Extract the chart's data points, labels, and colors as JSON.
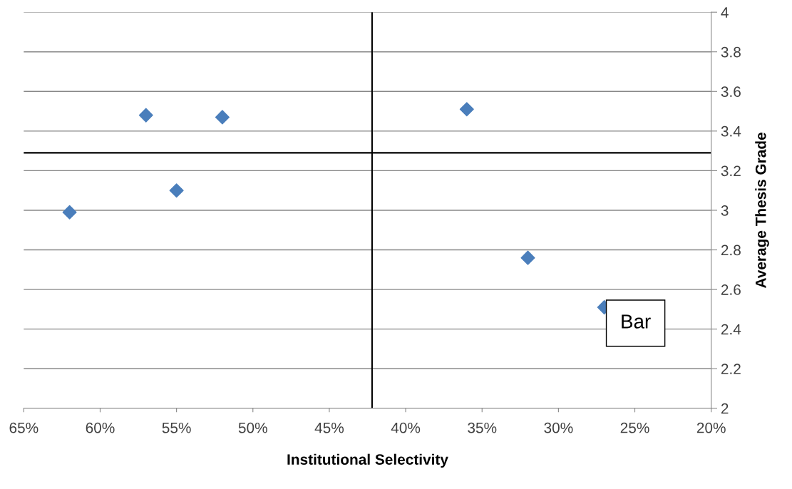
{
  "chart_data": {
    "type": "scatter",
    "xlabel": "Institutional Selectivity",
    "ylabel": "Average Thesis Grade",
    "x": [
      62,
      57,
      55,
      52,
      36,
      32,
      27
    ],
    "series": [
      {
        "color": "#4a7ebb",
        "values": [
          2.99,
          3.48,
          3.1,
          3.47,
          3.51,
          2.76,
          2.51
        ]
      }
    ],
    "xlim": [
      65,
      20
    ],
    "xticks": [
      {
        "value": 65,
        "label": "65%"
      },
      {
        "value": 60,
        "label": "60%"
      },
      {
        "value": 55,
        "label": "55%"
      },
      {
        "value": 50,
        "label": "50%"
      },
      {
        "value": 45,
        "label": "45%"
      },
      {
        "value": 40,
        "label": "40%"
      },
      {
        "value": 35,
        "label": "35%"
      },
      {
        "value": 30,
        "label": "30%"
      },
      {
        "value": 25,
        "label": "25%"
      },
      {
        "value": 20,
        "label": "20%"
      }
    ],
    "ylim": [
      2,
      4
    ],
    "yticks": [
      2,
      2.2,
      2.4,
      2.6,
      2.8,
      3,
      3.2,
      3.4,
      3.6,
      3.8,
      4
    ],
    "ref_lines": [
      {
        "axis": "x",
        "value": 42.2,
        "color": "#000000"
      },
      {
        "axis": "y",
        "value": 3.29,
        "color": "#000000"
      }
    ],
    "annotations": [
      "Bar"
    ],
    "grid": "y",
    "marker": "diamond",
    "legend": false
  }
}
